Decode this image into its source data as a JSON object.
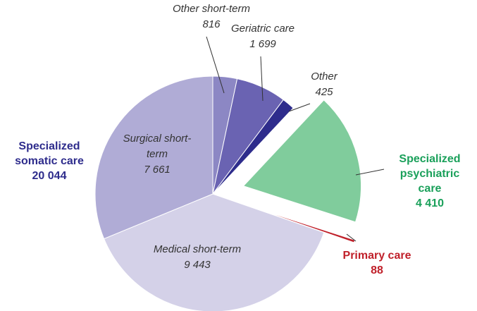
{
  "chart_data": {
    "type": "pie",
    "categories": [
      "Other short-term",
      "Geriatric care",
      "Other",
      "Specialized psychiatric care",
      "Primary care",
      "Medical short-term",
      "Surgical short-term"
    ],
    "values": [
      816,
      1699,
      425,
      4410,
      88,
      9443,
      7661
    ],
    "value_labels": [
      "816",
      "1 699",
      "425",
      "4 410",
      "88",
      "9 443",
      "7 661"
    ],
    "colors": [
      "#8c87c4",
      "#6a63b2",
      "#2e2c8c",
      "#80cc9c",
      "#c0202a",
      "#d4d1e8",
      "#b0acd6"
    ],
    "exploded": [
      false,
      false,
      false,
      true,
      true,
      false,
      false
    ],
    "groups": [
      {
        "name": "Specialized somatic care",
        "value": 20044,
        "value_label": "20 044"
      }
    ]
  }
}
